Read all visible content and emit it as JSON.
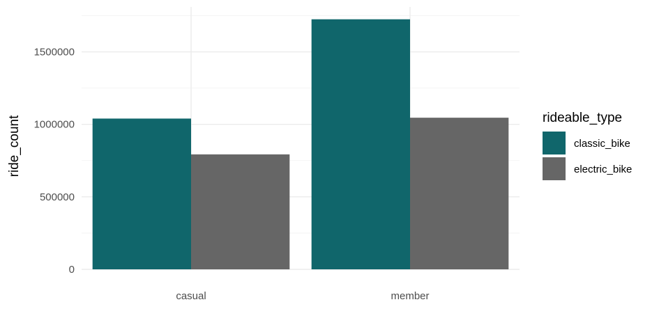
{
  "chart_data": {
    "type": "bar",
    "title": "",
    "xlabel": "",
    "ylabel": "ride_count",
    "categories": [
      "casual",
      "member"
    ],
    "series": [
      {
        "name": "classic_bike",
        "color": "#10666b",
        "values": [
          1040000,
          1725000
        ]
      },
      {
        "name": "electric_bike",
        "color": "#666666",
        "values": [
          793000,
          1046000
        ]
      }
    ],
    "yticks": [
      0,
      500000,
      1000000,
      1500000
    ],
    "ytick_labels": [
      "0",
      "500000",
      "1000000",
      "1500000"
    ],
    "ylim": [
      0,
      1810000
    ],
    "grid": true,
    "legend": {
      "title": "rideable_type",
      "position": "right"
    }
  }
}
